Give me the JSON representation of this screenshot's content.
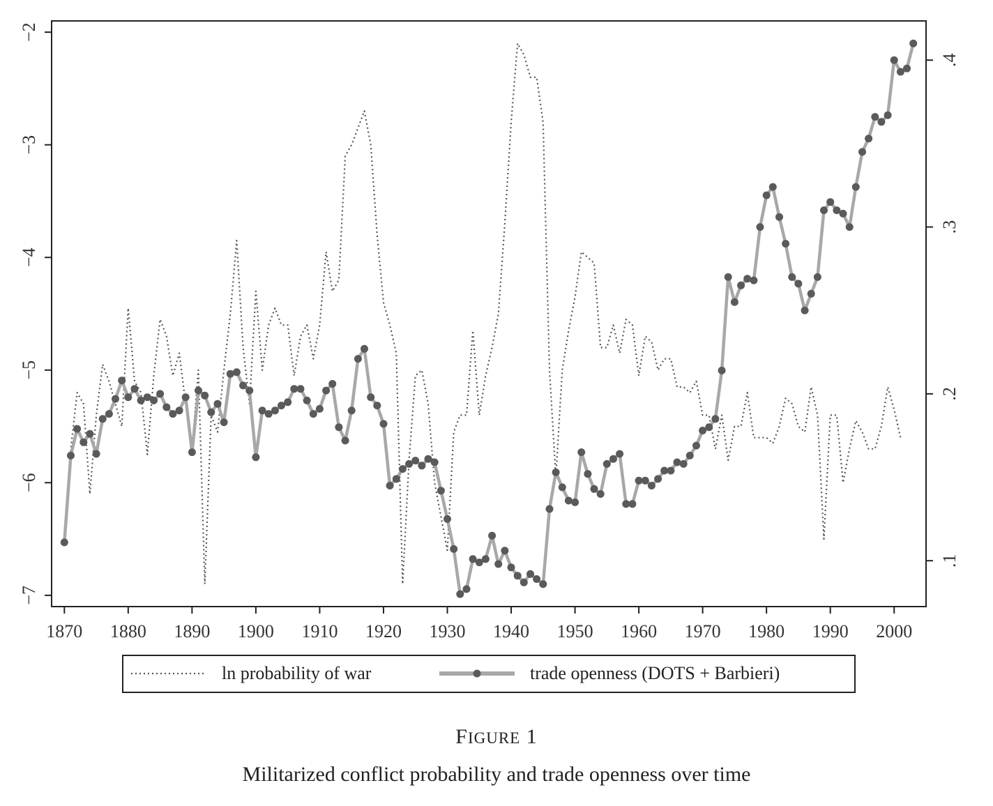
{
  "figure": {
    "label_first": "F",
    "label_rest": "IGURE",
    "label_number": "1",
    "caption": "Militarized conflict probability and trade openness over time"
  },
  "colors": {
    "war_line": "#555555",
    "trade_line": "#a8a8a8",
    "trade_marker": "#5a5a5a",
    "axis": "#222222"
  },
  "chart_data": {
    "type": "line",
    "x_ticks": [
      1870,
      1880,
      1890,
      1900,
      1910,
      1920,
      1930,
      1940,
      1950,
      1960,
      1970,
      1980,
      1990,
      2000
    ],
    "xlim": [
      1868,
      2005
    ],
    "left_axis": {
      "ylim": [
        -7.1,
        -1.9
      ],
      "ticks": [
        -7,
        -6,
        -5,
        -4,
        -3,
        -2
      ],
      "tick_labels": [
        "−7",
        "−6",
        "−5",
        "−4",
        "−3",
        "−2"
      ]
    },
    "right_axis": {
      "ylim": [
        0.0725,
        0.4235
      ],
      "ticks": [
        0.1,
        0.2,
        0.3,
        0.4
      ],
      "tick_labels": [
        ".1",
        ".2",
        ".3",
        ".4"
      ]
    },
    "legend": {
      "position": "bottom"
    },
    "series": [
      {
        "name": "ln probability of war",
        "axis": "left",
        "style": "dotted",
        "x": [
          1870,
          1871,
          1872,
          1873,
          1874,
          1875,
          1876,
          1877,
          1878,
          1879,
          1880,
          1881,
          1882,
          1883,
          1884,
          1885,
          1886,
          1887,
          1888,
          1889,
          1890,
          1891,
          1892,
          1893,
          1894,
          1895,
          1896,
          1897,
          1898,
          1899,
          1900,
          1901,
          1902,
          1903,
          1904,
          1905,
          1906,
          1907,
          1908,
          1909,
          1910,
          1911,
          1912,
          1913,
          1914,
          1915,
          1916,
          1917,
          1918,
          1919,
          1920,
          1921,
          1922,
          1923,
          1924,
          1925,
          1926,
          1927,
          1928,
          1929,
          1930,
          1931,
          1932,
          1933,
          1934,
          1935,
          1936,
          1937,
          1938,
          1939,
          1940,
          1941,
          1942,
          1943,
          1944,
          1945,
          1946,
          1947,
          1948,
          1949,
          1950,
          1951,
          1952,
          1953,
          1954,
          1955,
          1956,
          1957,
          1958,
          1959,
          1960,
          1961,
          1962,
          1963,
          1964,
          1965,
          1966,
          1967,
          1968,
          1969,
          1970,
          1971,
          1972,
          1973,
          1974,
          1975,
          1976,
          1977,
          1978,
          1979,
          1980,
          1981,
          1982,
          1983,
          1984,
          1985,
          1986,
          1987,
          1988,
          1989,
          1990,
          1991,
          1992,
          1993,
          1994,
          1995,
          1996,
          1997,
          1998,
          1999,
          2000,
          2001
        ],
        "values": [
          -6.5,
          -5.7,
          -5.2,
          -5.3,
          -6.1,
          -5.4,
          -4.95,
          -5.1,
          -5.3,
          -5.5,
          -4.45,
          -5.1,
          -5.2,
          -5.75,
          -5.05,
          -4.55,
          -4.7,
          -5.05,
          -4.85,
          -5.3,
          -5.7,
          -5.0,
          -6.9,
          -5.4,
          -5.55,
          -5.0,
          -4.5,
          -3.85,
          -4.8,
          -5.3,
          -4.3,
          -5.0,
          -4.6,
          -4.45,
          -4.6,
          -4.6,
          -5.05,
          -4.7,
          -4.6,
          -4.9,
          -4.6,
          -3.95,
          -4.3,
          -4.2,
          -3.1,
          -3.0,
          -2.85,
          -2.7,
          -3.0,
          -3.8,
          -4.4,
          -4.6,
          -4.85,
          -6.9,
          -5.8,
          -5.05,
          -5.0,
          -5.3,
          -6.0,
          -6.3,
          -6.6,
          -5.55,
          -5.4,
          -5.4,
          -4.65,
          -5.4,
          -5.05,
          -4.8,
          -4.5,
          -3.7,
          -2.8,
          -2.1,
          -2.2,
          -2.4,
          -2.4,
          -2.8,
          -5.0,
          -5.95,
          -5.0,
          -4.65,
          -4.35,
          -3.95,
          -4.0,
          -4.05,
          -4.8,
          -4.8,
          -4.6,
          -4.85,
          -4.55,
          -4.6,
          -5.05,
          -4.7,
          -4.75,
          -5.0,
          -4.9,
          -4.9,
          -5.15,
          -5.15,
          -5.2,
          -5.1,
          -5.4,
          -5.4,
          -5.7,
          -5.4,
          -5.8,
          -5.5,
          -5.5,
          -5.2,
          -5.6,
          -5.6,
          -5.6,
          -5.65,
          -5.5,
          -5.25,
          -5.3,
          -5.5,
          -5.55,
          -5.15,
          -5.4,
          -6.5,
          -5.4,
          -5.4,
          -6.0,
          -5.7,
          -5.45,
          -5.55,
          -5.7,
          -5.7,
          -5.5,
          -5.15,
          -5.35,
          -5.6
        ]
      },
      {
        "name": "trade openness (DOTS + Barbieri)",
        "axis": "right",
        "style": "solid-markers",
        "x": [
          1870,
          1871,
          1872,
          1873,
          1874,
          1875,
          1876,
          1877,
          1878,
          1879,
          1880,
          1881,
          1882,
          1883,
          1884,
          1885,
          1886,
          1887,
          1888,
          1889,
          1890,
          1891,
          1892,
          1893,
          1894,
          1895,
          1896,
          1897,
          1898,
          1899,
          1900,
          1901,
          1902,
          1903,
          1904,
          1905,
          1906,
          1907,
          1908,
          1909,
          1910,
          1911,
          1912,
          1913,
          1914,
          1915,
          1916,
          1917,
          1918,
          1919,
          1920,
          1921,
          1922,
          1923,
          1924,
          1925,
          1926,
          1927,
          1928,
          1929,
          1930,
          1931,
          1932,
          1933,
          1934,
          1935,
          1936,
          1937,
          1938,
          1939,
          1940,
          1941,
          1942,
          1943,
          1944,
          1945,
          1946,
          1947,
          1948,
          1949,
          1950,
          1951,
          1952,
          1953,
          1954,
          1955,
          1956,
          1957,
          1958,
          1959,
          1960,
          1961,
          1962,
          1963,
          1964,
          1965,
          1966,
          1967,
          1968,
          1969,
          1970,
          1971,
          1972,
          1973,
          1974,
          1975,
          1976,
          1977,
          1978,
          1979,
          1980,
          1981,
          1982,
          1983,
          1984,
          1985,
          1986,
          1987,
          1988,
          1989,
          1990,
          1991,
          1992,
          1993,
          1994,
          1995,
          1996,
          1997,
          1998,
          1999,
          2000,
          2001,
          2002,
          2003
        ],
        "values": [
          0.111,
          0.163,
          0.179,
          0.171,
          0.176,
          0.164,
          0.185,
          0.188,
          0.197,
          0.208,
          0.198,
          0.203,
          0.196,
          0.198,
          0.196,
          0.2,
          0.192,
          0.188,
          0.19,
          0.198,
          0.165,
          0.202,
          0.199,
          0.189,
          0.194,
          0.183,
          0.212,
          0.213,
          0.205,
          0.202,
          0.162,
          0.19,
          0.188,
          0.19,
          0.193,
          0.195,
          0.203,
          0.203,
          0.196,
          0.188,
          0.191,
          0.202,
          0.206,
          0.18,
          0.172,
          0.19,
          0.221,
          0.227,
          0.198,
          0.193,
          0.182,
          0.145,
          0.149,
          0.155,
          0.158,
          0.16,
          0.157,
          0.161,
          0.159,
          0.142,
          0.125,
          0.107,
          0.08,
          0.083,
          0.101,
          0.099,
          0.101,
          0.115,
          0.098,
          0.106,
          0.096,
          0.091,
          0.087,
          0.092,
          0.089,
          0.086,
          0.131,
          0.153,
          0.144,
          0.136,
          0.135,
          0.165,
          0.152,
          0.143,
          0.14,
          0.158,
          0.161,
          0.164,
          0.134,
          0.134,
          0.148,
          0.148,
          0.145,
          0.149,
          0.154,
          0.154,
          0.159,
          0.158,
          0.163,
          0.169,
          0.178,
          0.18,
          0.185,
          0.214,
          0.27,
          0.255,
          0.265,
          0.269,
          0.268,
          0.3,
          0.319,
          0.324,
          0.306,
          0.29,
          0.27,
          0.266,
          0.25,
          0.26,
          0.27,
          0.31,
          0.315,
          0.31,
          0.308,
          0.3,
          0.324,
          0.345,
          0.353,
          0.366,
          0.363,
          0.367,
          0.4,
          0.393,
          0.395,
          0.41
        ]
      }
    ]
  }
}
